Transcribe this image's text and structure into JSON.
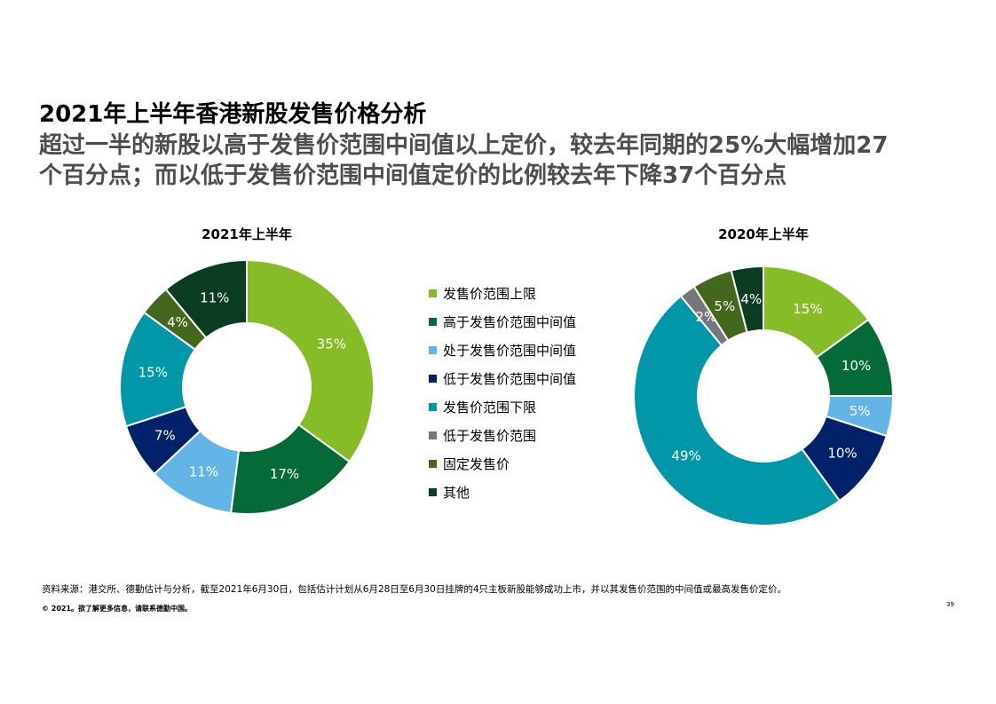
{
  "header": {
    "title": "2021年上半年香港新股发售价格分析",
    "subtitle_line1": "超过一半的新股以高于发售价范围中间值以上定价，较去年同期的25%大幅增加27",
    "subtitle_line2": "个百分点；而以低于发售价范围中间值定价的比例较去年下降37个百分点"
  },
  "legend": {
    "items": [
      {
        "label": "发售价范围上限",
        "color": "#86bc25"
      },
      {
        "label": "高于发售价范围中间值",
        "color": "#046a38"
      },
      {
        "label": "处于发售价范围中间值",
        "color": "#62b5e5"
      },
      {
        "label": "低于发售价范围中间值",
        "color": "#012169"
      },
      {
        "label": "发售价范围下限",
        "color": "#0097a9"
      },
      {
        "label": "低于发售价范围",
        "color": "#75787b"
      },
      {
        "label": "固定发售价",
        "color": "#43681d"
      },
      {
        "label": "其他",
        "color": "#0b3d23"
      }
    ]
  },
  "chart_data": [
    {
      "type": "pie",
      "title": "2021年上半年",
      "donut": true,
      "categories": [
        "发售价范围上限",
        "高于发售价范围中间值",
        "处于发售价范围中间值",
        "低于发售价范围中间值",
        "发售价范围下限",
        "低于发售价范围",
        "固定发售价",
        "其他"
      ],
      "values": [
        35,
        17,
        11,
        7,
        15,
        0,
        4,
        11
      ],
      "labels": [
        "35%",
        "17%",
        "11%",
        "7%",
        "15%",
        "",
        "4%",
        "11%"
      ],
      "colors": [
        "#86bc25",
        "#046a38",
        "#62b5e5",
        "#012169",
        "#0097a9",
        "#75787b",
        "#43681d",
        "#0b3d23"
      ],
      "label_colors": [
        "#ffffff",
        "#ffffff",
        "#ffffff",
        "#ffffff",
        "#ffffff",
        "#ffffff",
        "#ffffff",
        "#ffffff"
      ]
    },
    {
      "type": "pie",
      "title": "2020年上半年",
      "donut": true,
      "categories": [
        "发售价范围上限",
        "高于发售价范围中间值",
        "处于发售价范围中间值",
        "低于发售价范围中间值",
        "发售价范围下限",
        "低于发售价范围",
        "固定发售价",
        "其他"
      ],
      "values": [
        15,
        10,
        5,
        10,
        49,
        2,
        5,
        4
      ],
      "labels": [
        "15%",
        "10%",
        "5%",
        "10%",
        "49%",
        "2%",
        "5%",
        "4%"
      ],
      "colors": [
        "#86bc25",
        "#046a38",
        "#62b5e5",
        "#012169",
        "#0097a9",
        "#75787b",
        "#43681d",
        "#0b3d23"
      ],
      "label_colors": [
        "#ffffff",
        "#ffffff",
        "#ffffff",
        "#ffffff",
        "#ffffff",
        "#ffffff",
        "#ffffff",
        "#ffffff"
      ]
    }
  ],
  "footer": {
    "source": "资料来源：港交所、德勤估计与分析，截至2021年6月30日，包括估计计划从6月28日至6月30日挂牌的4只主板新股能够成功上市，并以其发售价范围的中间值或最高发售价定价。",
    "copyright": "© 2021。欲了解更多信息，请联系德勤中国。",
    "page_number": "39"
  }
}
